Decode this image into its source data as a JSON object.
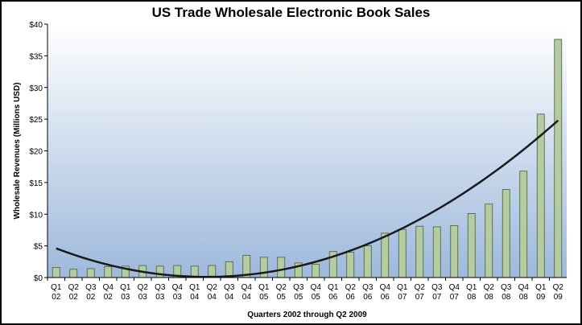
{
  "chart_data": {
    "type": "bar",
    "title": "US Trade Wholesale Electronic Book Sales",
    "xlabel": "Quarters 2002 through Q2 2009",
    "ylabel": "Wholesale Revenues (Millions USD)",
    "ylim": [
      0,
      40
    ],
    "yticks": [
      "$0",
      "$5",
      "$10",
      "$15",
      "$20",
      "$25",
      "$30",
      "$35",
      "$40"
    ],
    "categories": [
      [
        "Q1",
        "02"
      ],
      [
        "Q2",
        "02"
      ],
      [
        "Q3",
        "02"
      ],
      [
        "Q4",
        "02"
      ],
      [
        "Q1",
        "03"
      ],
      [
        "Q2",
        "03"
      ],
      [
        "Q3",
        "03"
      ],
      [
        "Q4",
        "03"
      ],
      [
        "Q1",
        "04"
      ],
      [
        "Q2",
        "04"
      ],
      [
        "Q3",
        "04"
      ],
      [
        "Q4",
        "04"
      ],
      [
        "Q1",
        "05"
      ],
      [
        "Q2",
        "05"
      ],
      [
        "Q3",
        "05"
      ],
      [
        "Q4",
        "05"
      ],
      [
        "Q1",
        "06"
      ],
      [
        "Q2",
        "06"
      ],
      [
        "Q3",
        "06"
      ],
      [
        "Q4",
        "06"
      ],
      [
        "Q1",
        "07"
      ],
      [
        "Q2",
        "07"
      ],
      [
        "Q3",
        "07"
      ],
      [
        "Q4",
        "07"
      ],
      [
        "Q1",
        "08"
      ],
      [
        "Q2",
        "08"
      ],
      [
        "Q3",
        "08"
      ],
      [
        "Q4",
        "08"
      ],
      [
        "Q1",
        "09"
      ],
      [
        "Q2",
        "09"
      ]
    ],
    "values": [
      1.6,
      1.3,
      1.4,
      1.7,
      1.8,
      1.9,
      1.8,
      1.9,
      1.8,
      1.9,
      2.5,
      3.5,
      3.2,
      3.2,
      2.3,
      2.1,
      4.1,
      4.0,
      5.0,
      7.0,
      7.6,
      8.1,
      8.0,
      8.2,
      10.1,
      11.6,
      13.9,
      16.8,
      25.8,
      37.6
    ],
    "trendline": {
      "type": "polynomial",
      "start": 4.6,
      "end": 24.8,
      "color": "#1a1a1a"
    },
    "colors": {
      "bar_fill": "#b5cca0",
      "bar_stroke": "#4a5a3a",
      "bg_top": "#ffffff",
      "bg_bottom": "#9db9dc"
    },
    "grid": false,
    "legend": "none"
  }
}
